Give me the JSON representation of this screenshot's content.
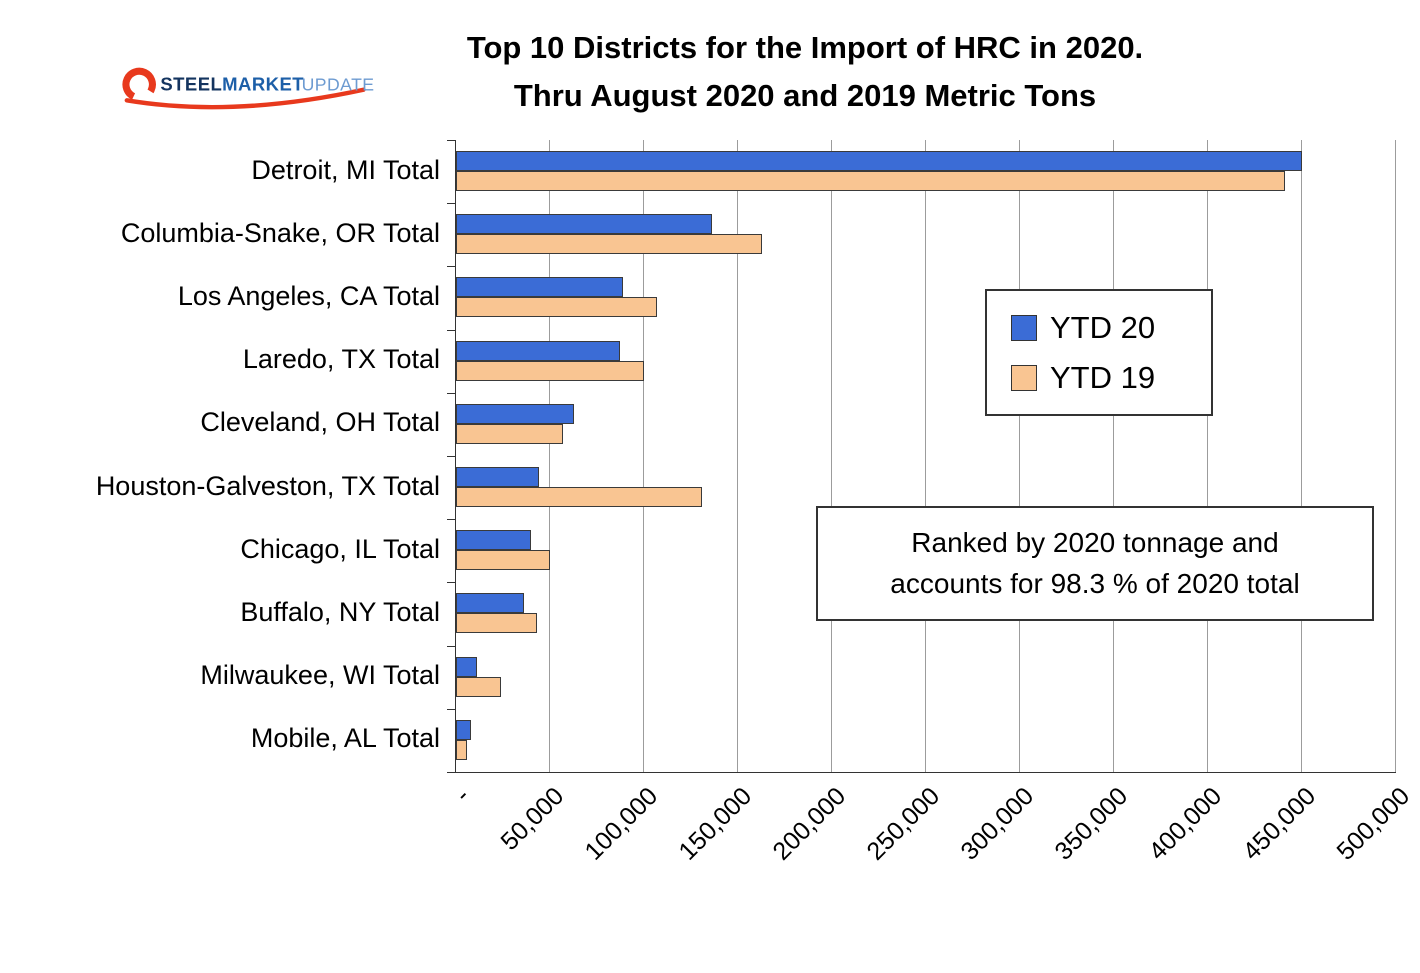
{
  "logo": {
    "steel": "STEEL",
    "market": "MARKET",
    "update": "UPDATE",
    "accent_color": "#e8391d"
  },
  "title": {
    "line1": "Top 10 Districts for the Import of HRC in 2020.",
    "line2": "Thru August 2020 and 2019 Metric Tons"
  },
  "legend": {
    "items": [
      {
        "label": "YTD 20",
        "color": "#3b6cd6"
      },
      {
        "label": "YTD 19",
        "color": "#f9c592"
      }
    ]
  },
  "annotation": {
    "line1": "Ranked by 2020 tonnage and",
    "line2": "accounts for 98.3 % of 2020 total"
  },
  "chart_data": {
    "type": "bar",
    "orientation": "horizontal",
    "title": "Top 10 Districts for the Import of HRC in 2020. Thru August 2020 and 2019 Metric Tons",
    "xlabel": "",
    "ylabel": "",
    "categories": [
      "Detroit, MI Total",
      "Columbia-Snake, OR Total",
      "Los Angeles, CA Total",
      "Laredo, TX Total",
      "Cleveland, OH Total",
      "Houston-Galveston, TX Total",
      "Chicago, IL Total",
      "Buffalo, NY Total",
      "Milwaukee, WI Total",
      "Mobile, AL Total"
    ],
    "series": [
      {
        "name": "YTD 20",
        "color": "#3b6cd6",
        "values": [
          450000,
          136000,
          89000,
          87000,
          63000,
          44000,
          40000,
          36000,
          11000,
          8000
        ]
      },
      {
        "name": "YTD 19",
        "color": "#f9c592",
        "values": [
          441000,
          163000,
          107000,
          100000,
          57000,
          131000,
          50000,
          43000,
          24000,
          6000
        ]
      }
    ],
    "x_axis": {
      "min": 0,
      "max": 500000,
      "tick_interval": 50000,
      "tick_labels": [
        "-",
        "50,000",
        "100,000",
        "150,000",
        "200,000",
        "250,000",
        "300,000",
        "350,000",
        "400,000",
        "450,000",
        "500,000"
      ]
    },
    "grid": true,
    "legend_position": "upper-right-inside"
  }
}
